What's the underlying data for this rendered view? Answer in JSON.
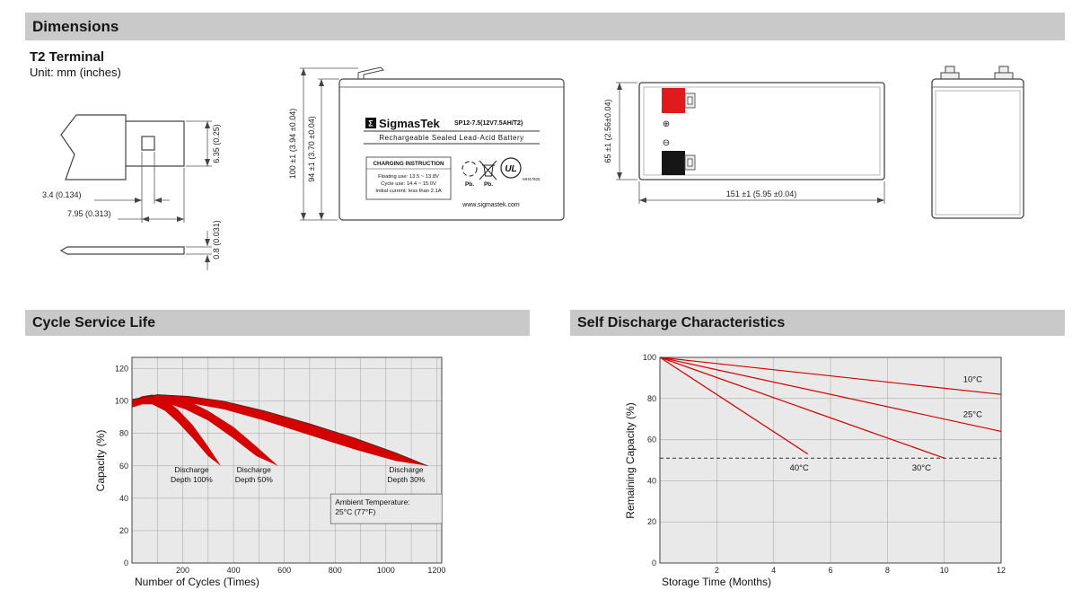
{
  "colors": {
    "header_bg": "#c9c9c9",
    "header_text": "#161616",
    "line": "#444444",
    "red": "#d40000",
    "chart_bg": "#e9e9e9",
    "grid": "#a0a0a0",
    "terminal_pos": "#e01b1b",
    "terminal_neg": "#161616"
  },
  "header": {
    "dimensions_title": "Dimensions"
  },
  "dimensions_block": {
    "terminal_type": "T2 Terminal",
    "unit_note": "Unit: mm (inches)",
    "terminal_detail": {
      "dim_slot_width": "3.4 (0.134)",
      "dim_tab_length": "7.95 (0.313)",
      "dim_tab_width": "6.35 (0.25)",
      "dim_thickness": "0.8 (0.031)"
    },
    "front_view": {
      "dim_total_height": "100 ±1 (3.94 ±0.04)",
      "dim_case_height": "94 ±1 (3.70 ±0.04)",
      "logo_sigma": "Σ",
      "brand": "SigmasTek",
      "model": "SP12-7.5(12V7.5AH/T2)",
      "subtitle": "Rechargeable Sealed Lead-Acid Battery",
      "charging_title": "CHARGING INSTRUCTION",
      "charging_lines": [
        "Floating use: 13.5 ~ 13.8V",
        "Cycle use: 14.4 ~ 15.0V",
        "Initial current: less than 2.1A"
      ],
      "pb_recycle_label": "Pb.",
      "pb_trash_label": "Pb.",
      "ul_mark": "UL",
      "ul_code": "MH47925",
      "website": "www.sigmastek.com"
    },
    "side_view": {
      "dim_height": "65 ±1 (2.56±0.04)",
      "dim_length": "151 ±1 (5.95 ±0.04)",
      "positive_symbol": "⊕",
      "negative_symbol": "⊖"
    }
  },
  "chart_data": [
    {
      "id": "cycle_life",
      "type": "area",
      "title": "Cycle Service Life",
      "xlabel": "Number of Cycles (Times)",
      "ylabel": "Capacity (%)",
      "xlim": [
        0,
        1220
      ],
      "ylim": [
        0,
        127
      ],
      "x_ticks": [
        200,
        400,
        600,
        800,
        1000,
        1200
      ],
      "y_ticks": [
        0,
        20,
        40,
        60,
        80,
        100,
        120
      ],
      "x_grid_step": 100,
      "y_grid_step": 20,
      "grid": true,
      "legend": "none",
      "bands": [
        {
          "name": "Discharge Depth 100%",
          "points_upper": [
            [
              0,
              100
            ],
            [
              40,
              103
            ],
            [
              80,
              104
            ],
            [
              130,
              101
            ],
            [
              180,
              95
            ],
            [
              240,
              85
            ],
            [
              300,
              72
            ],
            [
              350,
              60
            ]
          ],
          "points_lower": [
            [
              0,
              96
            ],
            [
              40,
              98
            ],
            [
              80,
              98
            ],
            [
              130,
              94
            ],
            [
              180,
              87
            ],
            [
              240,
              77
            ],
            [
              300,
              66
            ],
            [
              350,
              60
            ]
          ]
        },
        {
          "name": "Discharge Depth 50%",
          "points_upper": [
            [
              0,
              100
            ],
            [
              60,
              103
            ],
            [
              130,
              104
            ],
            [
              210,
              101
            ],
            [
              300,
              94
            ],
            [
              400,
              84
            ],
            [
              490,
              72
            ],
            [
              575,
              60
            ]
          ],
          "points_lower": [
            [
              0,
              97
            ],
            [
              60,
              99
            ],
            [
              130,
              99
            ],
            [
              210,
              95
            ],
            [
              300,
              88
            ],
            [
              400,
              77
            ],
            [
              490,
              66
            ],
            [
              575,
              60
            ]
          ]
        },
        {
          "name": "Discharge Depth 30%",
          "upper_stroke": true,
          "points_upper": [
            [
              0,
              101
            ],
            [
              100,
              104
            ],
            [
              220,
              103
            ],
            [
              360,
              100
            ],
            [
              520,
              94
            ],
            [
              700,
              86
            ],
            [
              880,
              77
            ],
            [
              1040,
              68
            ],
            [
              1165,
              60
            ]
          ],
          "points_lower": [
            [
              0,
              98
            ],
            [
              100,
              100
            ],
            [
              220,
              99
            ],
            [
              360,
              95
            ],
            [
              520,
              88
            ],
            [
              700,
              79
            ],
            [
              880,
              70
            ],
            [
              1040,
              63
            ],
            [
              1165,
              60
            ]
          ]
        }
      ],
      "annotations": [
        {
          "lines": [
            "Discharge",
            "Depth 100%"
          ],
          "x": 235,
          "y": 56,
          "align": "middle"
        },
        {
          "lines": [
            "Discharge",
            "Depth 50%"
          ],
          "x": 480,
          "y": 56,
          "align": "middle"
        },
        {
          "lines": [
            "Discharge",
            "Depth 30%"
          ],
          "x": 1080,
          "y": 56,
          "align": "middle"
        },
        {
          "lines": [
            "Ambient Temperature:",
            "25°C (77°F)"
          ],
          "x": 800,
          "y": 36,
          "align": "start",
          "box": true
        }
      ]
    },
    {
      "id": "self_discharge",
      "type": "line",
      "title": "Self Discharge Characteristics",
      "xlabel": "Storage Time (Months)",
      "ylabel": "Remaining Capacity (%)",
      "xlim": [
        0,
        12
      ],
      "ylim": [
        0,
        100
      ],
      "x_ticks": [
        2,
        4,
        6,
        8,
        10,
        12
      ],
      "y_ticks": [
        0,
        20,
        40,
        60,
        80,
        100
      ],
      "x_grid_step": 2,
      "y_grid_step": 20,
      "grid": true,
      "legend": "inline-labels",
      "reference_line": {
        "y": 51,
        "style": "dashed"
      },
      "series": [
        {
          "name": "10°C",
          "points": [
            [
              0,
              100
            ],
            [
              12,
              82
            ]
          ],
          "label_x": 11.0,
          "label_y": 88
        },
        {
          "name": "25°C",
          "points": [
            [
              0,
              100
            ],
            [
              12,
              64
            ]
          ],
          "label_x": 11.0,
          "label_y": 71
        },
        {
          "name": "30°C",
          "points": [
            [
              0,
              100
            ],
            [
              10,
              51
            ]
          ],
          "label_x": 9.2,
          "label_y": 45
        },
        {
          "name": "40°C",
          "points": [
            [
              0,
              100
            ],
            [
              5.2,
              53
            ]
          ],
          "label_x": 4.9,
          "label_y": 45
        }
      ]
    }
  ]
}
